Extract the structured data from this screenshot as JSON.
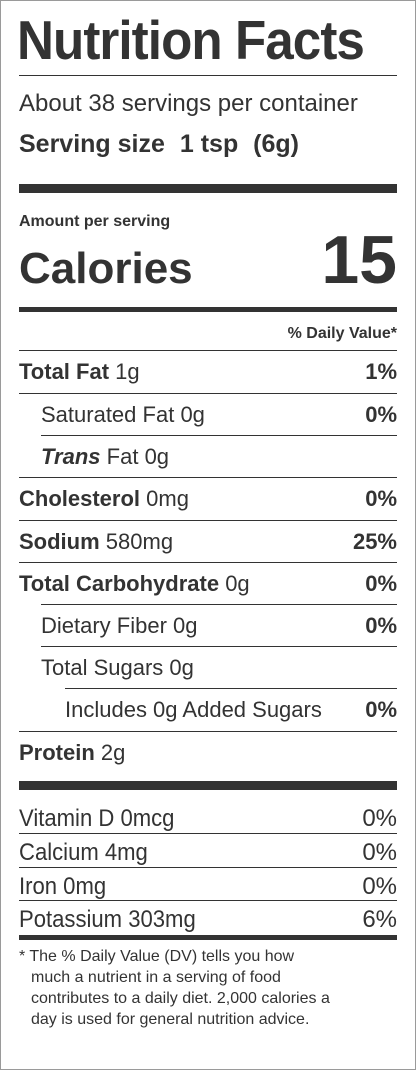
{
  "title": "Nutrition Facts",
  "servings_per_container": "About 38 servings per container",
  "serving_size": {
    "label": "Serving size",
    "value": "1 tsp",
    "grams": "(6g)"
  },
  "amount_per_serving": "Amount per serving",
  "calories": {
    "label": "Calories",
    "value": "15"
  },
  "daily_value_header": "% Daily Value*",
  "nutrients": [
    {
      "name": "Total Fat",
      "amount": "1g",
      "dv": "1%"
    },
    {
      "name": "Saturated Fat",
      "amount": "0g",
      "dv": "0%"
    },
    {
      "name_italic": "Trans",
      "name": "Fat",
      "amount": "0g",
      "dv": ""
    },
    {
      "name": "Cholesterol",
      "amount": "0mg",
      "dv": "0%"
    },
    {
      "name": "Sodium",
      "amount": "580mg",
      "dv": "25%"
    },
    {
      "name": "Total Carbohydrate",
      "amount": "0g",
      "dv": "0%"
    },
    {
      "name": "Dietary Fiber",
      "amount": "0g",
      "dv": "0%"
    },
    {
      "name": "Total Sugars",
      "amount": "0g",
      "dv": ""
    },
    {
      "name": "Includes 0g Added Sugars",
      "amount": "",
      "dv": "0%"
    },
    {
      "name": "Protein",
      "amount": "2g",
      "dv": ""
    }
  ],
  "vitamins": [
    {
      "name": "Vitamin D 0mcg",
      "dv": "0%"
    },
    {
      "name": "Calcium 4mg",
      "dv": "0%"
    },
    {
      "name": "Iron 0mg",
      "dv": "0%"
    },
    {
      "name": "Potassium 303mg",
      "dv": "6%"
    }
  ],
  "footnote": [
    "* The % Daily Value (DV) tells you how",
    "much a nutrient in a serving of food",
    "contributes to a daily diet. 2,000 calories a",
    "day is used for general nutrition advice."
  ]
}
